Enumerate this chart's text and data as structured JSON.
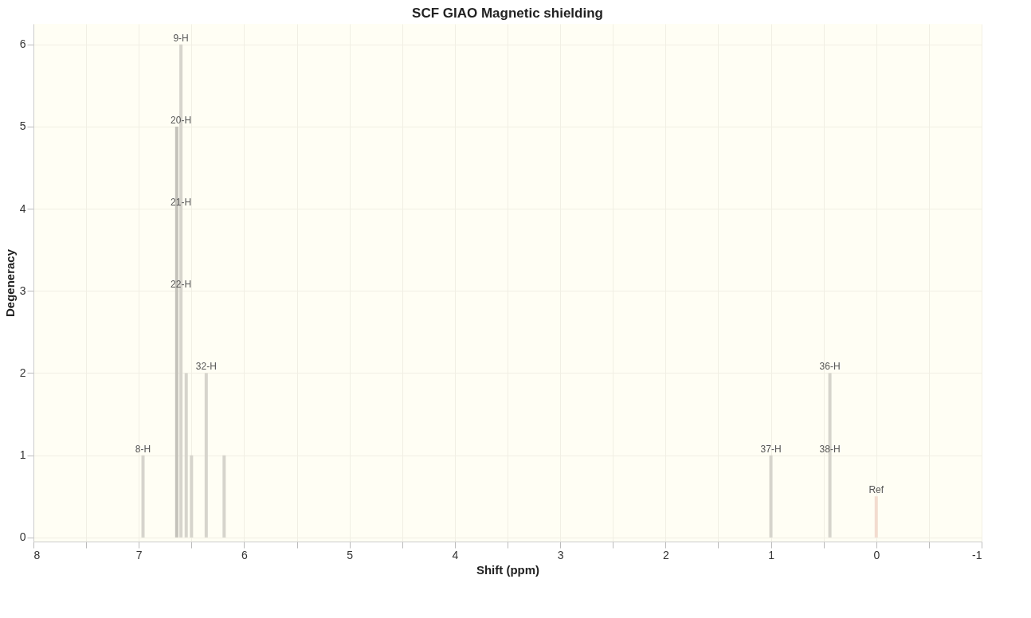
{
  "chart_data": {
    "type": "bar",
    "title": "SCF GIAO Magnetic shielding",
    "xlabel": "Shift (ppm)",
    "ylabel": "Degeneracy",
    "x": [
      6.96,
      6.64,
      6.6,
      6.55,
      6.5,
      6.36,
      6.19,
      1.0,
      0.44,
      0.0
    ],
    "values": [
      1,
      5,
      6,
      2,
      1,
      2,
      1,
      1,
      2,
      0.5
    ],
    "colors": [
      "#d6d4cc",
      "#c4c2ba",
      "#d6d4cc",
      "#d6d4cc",
      "#d6d4cc",
      "#d6d4cc",
      "#d6d4cc",
      "#d6d4cc",
      "#d6d4cc",
      "#f3dccf"
    ],
    "xlim": [
      8,
      -1
    ],
    "ylim": [
      -0.05,
      6.25
    ],
    "xticks": [
      8,
      {
        "value": 7.5,
        "label": null
      },
      7,
      {
        "value": 6.5,
        "label": null
      },
      6,
      {
        "value": 5.5,
        "label": null
      },
      5,
      {
        "value": 4.5,
        "label": null
      },
      4,
      {
        "value": 3.5,
        "label": null
      },
      3,
      {
        "value": 2.5,
        "label": null
      },
      2,
      {
        "value": 1.5,
        "label": null
      },
      1,
      {
        "value": 0.5,
        "label": null
      },
      0,
      {
        "value": -0.5,
        "label": null
      },
      -1
    ],
    "yticks": [
      0,
      1,
      2,
      3,
      4,
      5,
      6
    ],
    "grid": true,
    "annotations": [
      {
        "text": "9-H",
        "x": 6.6,
        "y": 6
      },
      {
        "text": "20-H",
        "x": 6.6,
        "y": 5
      },
      {
        "text": "21-H",
        "x": 6.6,
        "y": 4
      },
      {
        "text": "22-H",
        "x": 6.6,
        "y": 3
      },
      {
        "text": "32-H",
        "x": 6.36,
        "y": 2
      },
      {
        "text": "8-H",
        "x": 6.96,
        "y": 1
      },
      {
        "text": "37-H",
        "x": 1.0,
        "y": 1
      },
      {
        "text": "36-H",
        "x": 0.44,
        "y": 2
      },
      {
        "text": "38-H",
        "x": 0.44,
        "y": 1
      },
      {
        "text": "Ref",
        "x": 0.0,
        "y": 0.5
      }
    ]
  }
}
